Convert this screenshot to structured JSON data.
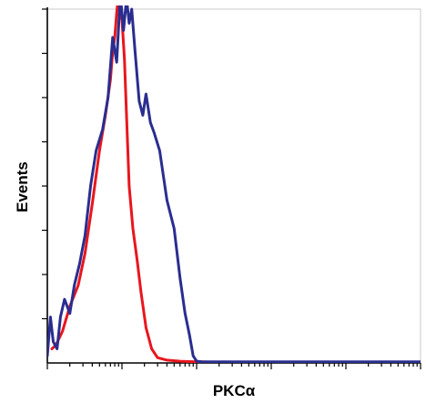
{
  "chart_data": {
    "type": "line",
    "title": "",
    "xlabel": "PKCα",
    "ylabel": "Events",
    "x_scale": "log",
    "xlim": [
      1,
      100000
    ],
    "ylim": [
      0,
      100
    ],
    "x_major_ticks": [
      1,
      10,
      100,
      1000,
      10000,
      100000
    ],
    "y_tick_count": 8,
    "grid": false,
    "legend": "none",
    "series": [
      {
        "color": "#e8161e",
        "x": [
          1.15,
          1.3,
          1.6,
          2,
          2.6,
          3.2,
          4,
          5,
          6,
          7,
          7.5,
          8,
          8.5,
          9,
          9.5,
          10,
          10.8,
          11.5,
          12.5,
          14,
          16,
          18,
          21,
          25,
          30,
          40,
          60,
          100,
          1000,
          100000
        ],
        "values": [
          4,
          5,
          9,
          16,
          22,
          31,
          45,
          60,
          70,
          80,
          88,
          92,
          99,
          104,
          98,
          97,
          86,
          70,
          50,
          38,
          29,
          20,
          10,
          4,
          1.5,
          0.8,
          0.5,
          0.3,
          0,
          0
        ]
      },
      {
        "color": "#2a2d8f",
        "x": [
          1,
          1.1,
          1.2,
          1.35,
          1.5,
          1.7,
          2,
          2.3,
          2.7,
          3.2,
          3.8,
          4.5,
          5.5,
          6.5,
          7.5,
          8.5,
          9.5,
          10.5,
          11.5,
          12.5,
          13.5,
          15,
          17,
          19,
          21,
          24,
          27,
          32,
          40,
          50,
          60,
          70,
          80,
          90,
          100,
          120,
          200,
          1000,
          10000,
          100000
        ],
        "values": [
          2,
          13,
          6,
          4,
          13,
          18,
          14,
          22,
          28,
          36,
          50,
          60,
          66,
          75,
          92,
          85,
          104,
          94,
          103,
          96,
          100,
          88,
          74,
          70,
          76,
          68,
          65,
          60,
          46,
          38,
          24,
          14,
          8,
          2,
          0.5,
          0.3,
          0.3,
          0.3,
          0.3,
          0.3
        ]
      }
    ]
  }
}
